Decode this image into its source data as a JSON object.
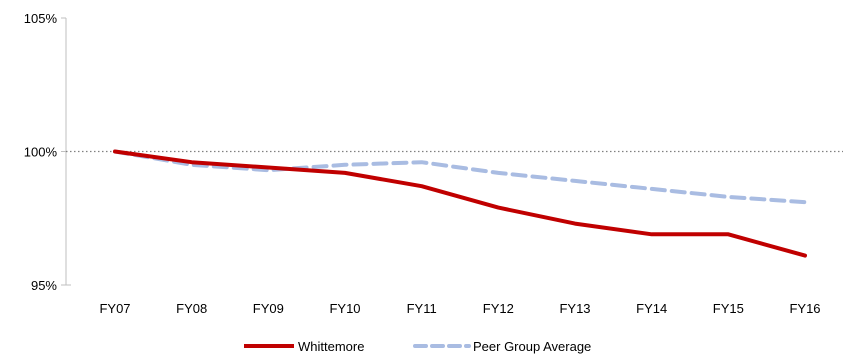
{
  "chart_data": {
    "type": "line",
    "title": "",
    "xlabel": "",
    "ylabel": "",
    "categories": [
      "FY07",
      "FY08",
      "FY09",
      "FY10",
      "FY11",
      "FY12",
      "FY13",
      "FY14",
      "FY15",
      "FY16"
    ],
    "ylim": [
      95,
      105
    ],
    "yticks": [
      95,
      100,
      105
    ],
    "ytick_labels": [
      "95%",
      "100%",
      "105%"
    ],
    "reference_line": 100,
    "grid": false,
    "legend_position": "bottom",
    "series": [
      {
        "name": "Whittemore",
        "style": "solid",
        "color": "#C00000",
        "values": [
          100.0,
          99.6,
          99.4,
          99.2,
          98.7,
          97.9,
          97.3,
          96.9,
          96.9,
          96.1
        ]
      },
      {
        "name": "Peer Group Average",
        "style": "dashed",
        "color": "#A9BCE2",
        "values": [
          100.0,
          99.5,
          99.3,
          99.5,
          99.6,
          99.2,
          98.9,
          98.6,
          98.3,
          98.1
        ]
      }
    ]
  }
}
